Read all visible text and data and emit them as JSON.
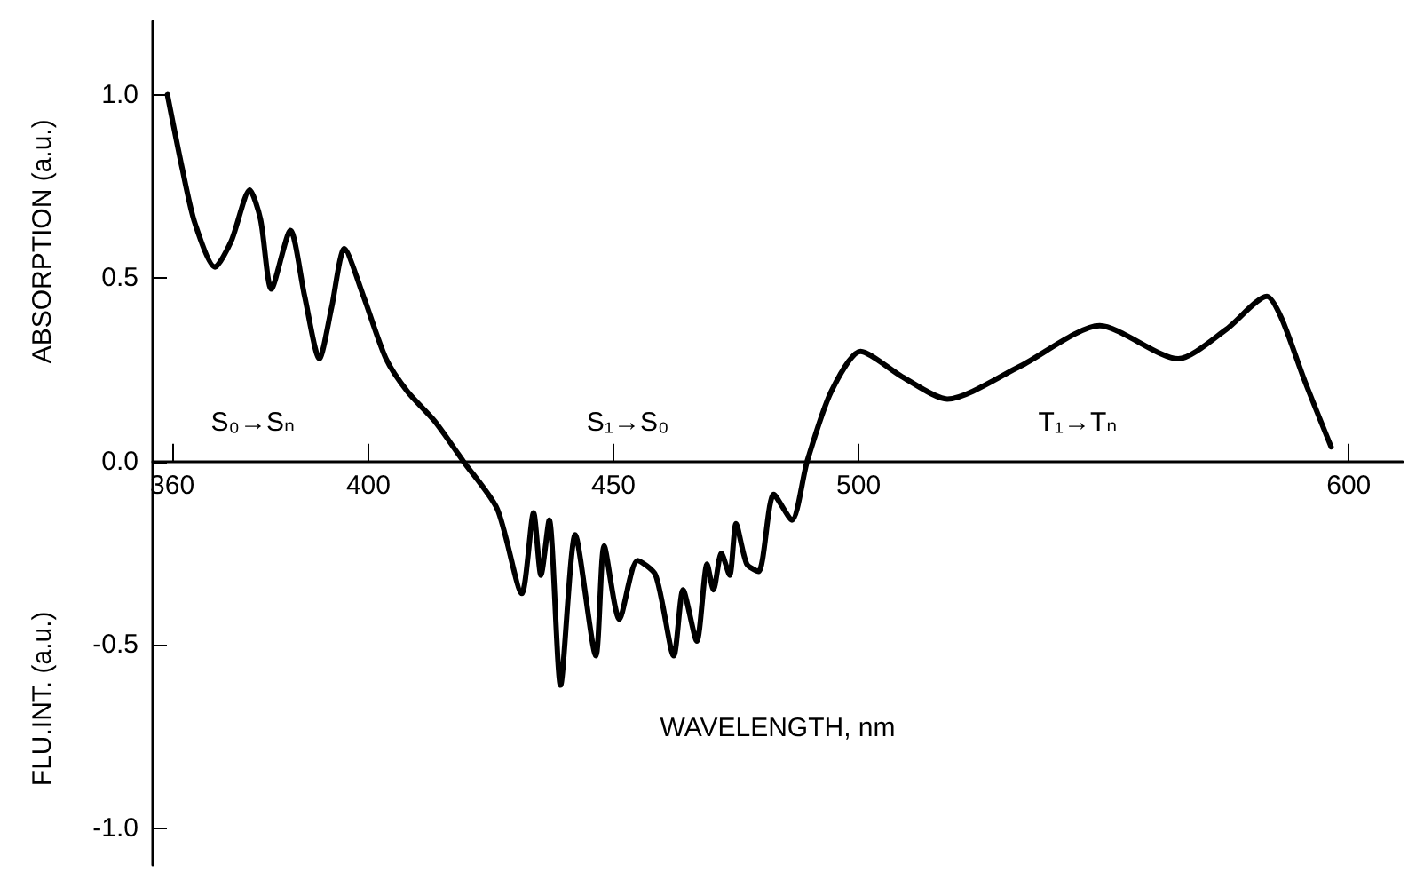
{
  "chart_data": {
    "type": "line",
    "ylabel": "ABSORPTION (a.u.)",
    "xlabel": "WAVELENGTH, nm",
    "annotations": [
      "FLU.INT. (a.u.)",
      "S₀→Sₙ",
      "S₁→S₀",
      "T₁→Tₙ"
    ],
    "x": [
      359,
      362,
      364.6,
      368.7,
      372,
      375.8,
      378,
      380.2,
      384.1,
      387,
      390,
      392.5,
      395.1,
      399,
      403.6,
      408,
      413.5,
      419.4,
      426.3,
      431.3,
      433.7,
      435.2,
      436.9,
      439.2,
      442.2,
      446.4,
      448.1,
      451.2,
      454.9,
      458.6,
      462.3,
      464.2,
      467,
      469.1,
      470.4,
      472,
      473.7,
      475,
      477.2,
      479.6,
      482.7,
      486.4,
      489.5,
      494.4,
      500.4,
      509,
      518.1,
      533,
      549.2,
      565.2,
      575,
      583.3,
      586.3,
      591,
      596.4
    ],
    "values": [
      1.0,
      0.8,
      0.65,
      0.53,
      0.6,
      0.74,
      0.66,
      0.47,
      0.63,
      0.45,
      0.28,
      0.42,
      0.58,
      0.45,
      0.28,
      0.19,
      0.11,
      0.0,
      -0.13,
      -0.36,
      -0.14,
      -0.31,
      -0.16,
      -0.61,
      -0.2,
      -0.53,
      -0.23,
      -0.43,
      -0.27,
      -0.31,
      -0.53,
      -0.35,
      -0.49,
      -0.28,
      -0.35,
      -0.25,
      -0.31,
      -0.17,
      -0.28,
      -0.3,
      -0.09,
      -0.16,
      0.0,
      0.19,
      0.3,
      0.23,
      0.17,
      0.26,
      0.37,
      0.28,
      0.36,
      0.45,
      0.39,
      0.22,
      0.04
    ],
    "color": "#000000",
    "marker": "none",
    "line_style": "solid",
    "xlim": [
      356,
      611
    ],
    "xticks": [
      360,
      400,
      450,
      500,
      600
    ],
    "ylim": [
      -1.1,
      1.2
    ],
    "yticks": [
      {
        "value": -1,
        "label": "-1.0"
      },
      {
        "value": -0.5,
        "label": "-0.5"
      },
      {
        "value": 0,
        "label": "0.0"
      },
      {
        "value": 0.5,
        "label": "0.5"
      },
      {
        "value": 1,
        "label": "1.0"
      }
    ]
  }
}
